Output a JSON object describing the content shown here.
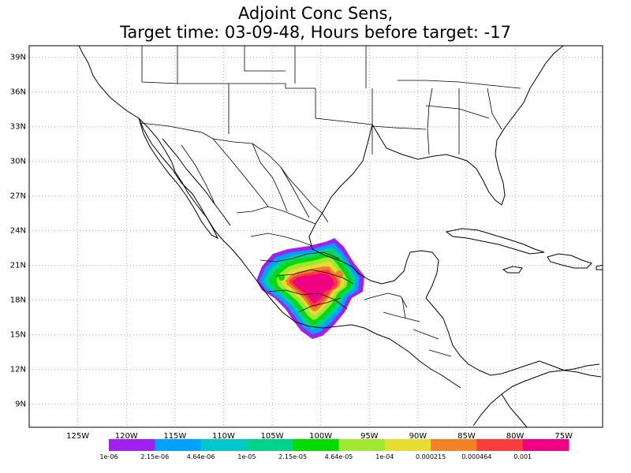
{
  "title": {
    "line1": "Adjoint Conc Sens,",
    "line2": "Target time: 03-09-48, Hours before target: -17"
  },
  "map": {
    "lon_range": [
      -130,
      -71
    ],
    "lat_range": [
      7,
      40
    ],
    "lon_ticks": [
      "125W",
      "120W",
      "115W",
      "110W",
      "105W",
      "100W",
      "95W",
      "90W",
      "85W",
      "80W",
      "75W"
    ],
    "lat_ticks": [
      "39N",
      "36N",
      "33N",
      "30N",
      "27N",
      "24N",
      "21N",
      "18N",
      "15N",
      "12N",
      "9N"
    ],
    "grid": "dotted"
  },
  "colorbar": {
    "colors": [
      "#a020f0",
      "#00a0ff",
      "#00c8c8",
      "#00d28c",
      "#00dc00",
      "#a0e632",
      "#e6dc32",
      "#f08228",
      "#fa3c3c",
      "#f00082"
    ],
    "labels": [
      "1e-06",
      "2.15e-06",
      "4.64e-06",
      "1e-05",
      "2.15e-05",
      "4.64e-05",
      "1e-04",
      "0.000215",
      "0.000464",
      "0.001"
    ]
  }
}
